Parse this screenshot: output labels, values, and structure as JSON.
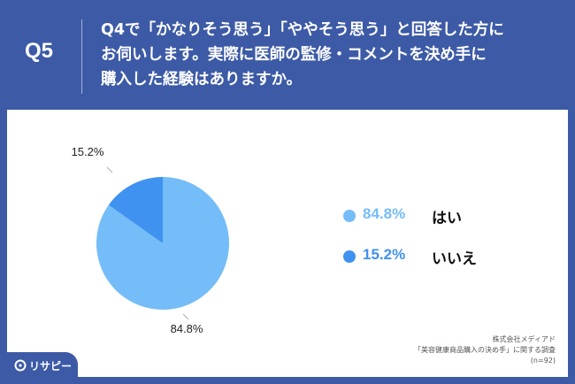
{
  "question": {
    "label": "Q5",
    "lines": [
      "Q4で「かなりそう思う」「ややそう思う」と回答した方に",
      "お伺いします。実際に医師の監修・コメントを決め手に",
      "購入した経験はありますか。"
    ]
  },
  "chart_data": {
    "type": "pie",
    "start_angle_deg": 0,
    "direction": "clockwise",
    "slices": [
      {
        "label": "はい",
        "value": 84.8,
        "display": "84.8%",
        "color": "#74bdf8"
      },
      {
        "label": "いいえ",
        "value": 15.2,
        "display": "15.2%",
        "color": "#3f92f0"
      }
    ],
    "legend_placement": "right"
  },
  "legend": {
    "items": [
      {
        "pct": "84.8%",
        "name": "はい",
        "color": "#74bdf8"
      },
      {
        "pct": "15.2%",
        "name": "いいえ",
        "color": "#3f92f0"
      }
    ]
  },
  "source": {
    "company": "株式会社メディアド",
    "survey": "「美容健康商品購入の決め手」に関する調査",
    "n": "(n=92)"
  },
  "brand": {
    "name": "リサピー",
    "color": "#3d5aa6"
  }
}
